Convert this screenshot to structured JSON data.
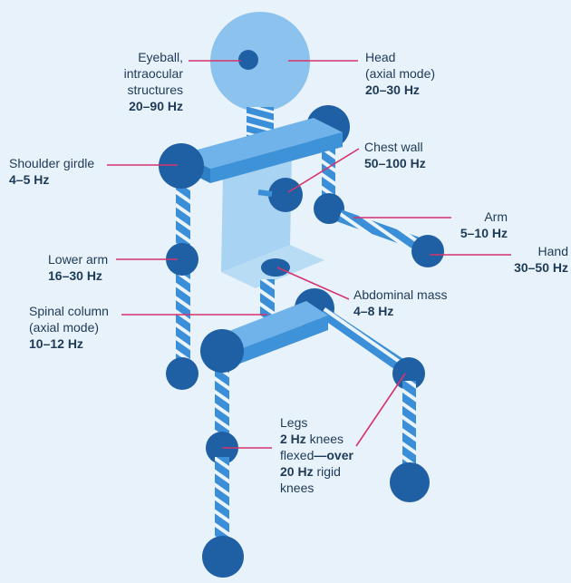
{
  "colors": {
    "background": "#e8f2fb",
    "joint": "#1f5fa3",
    "spring": "#3b8fd8",
    "spring_stripe": "#ffffff",
    "body_panel": "#a9d3f2",
    "head": "#8cc3ee",
    "beam": "#3d92d8",
    "leader_line": "#d6336c",
    "text": "#1d3a56"
  },
  "labels": {
    "eyeball": {
      "line1": "Eyeball,",
      "line2": "intraocular",
      "line3": "structures",
      "freq": "20–90 Hz"
    },
    "head": {
      "line1": "Head",
      "line2": "(axial mode)",
      "freq": "20–30 Hz"
    },
    "shoulder": {
      "line1": "Shoulder girdle",
      "freq": "4–5 Hz"
    },
    "chest": {
      "line1": "Chest wall",
      "freq": "50–100 Hz"
    },
    "arm": {
      "line1": "Arm",
      "freq": "5–10 Hz"
    },
    "hand": {
      "line1": "Hand",
      "freq": "30–50 Hz"
    },
    "lower_arm": {
      "line1": "Lower arm",
      "freq": "16–30 Hz"
    },
    "abdominal": {
      "line1": "Abdominal mass",
      "freq": "4–8 Hz"
    },
    "spinal": {
      "line1": "Spinal column",
      "line2": "(axial mode)",
      "freq": "10–12 Hz"
    },
    "legs": {
      "line1": "Legs",
      "freq1": "2 Hz",
      "text1": " knees",
      "text2": "flexed",
      "bold2": "—over",
      "freq2": "20 Hz",
      "text3": " rigid",
      "line4": "knees"
    }
  }
}
